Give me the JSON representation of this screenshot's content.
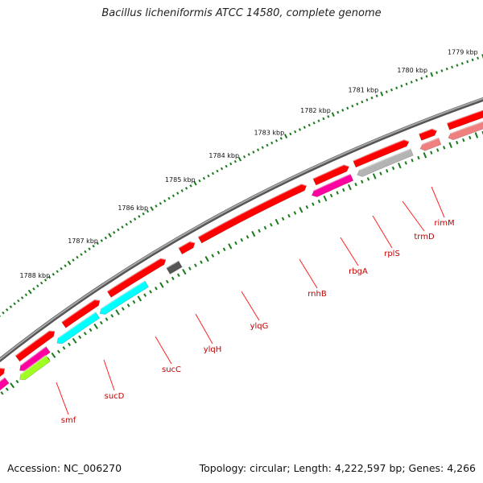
{
  "title": "Bacillus licheniformis ATCC 14580, complete genome",
  "footer": {
    "accession": "Accession: NC_006270",
    "summary": "Topology: circular; Length: 4,222,597 bp; Genes: 4,266"
  },
  "colors": {
    "forward_gene": "#ff0000",
    "reverse_gene_light": "#f08080",
    "cyan_gene": "#00ffff",
    "magenta_gene": "#ff00a0",
    "lime_gene": "#a0ff20",
    "gray_gene": "#b4b4b4",
    "dark_gray_gene": "#555555",
    "backbone": "#777777",
    "ticks": "#1a7a1a",
    "label": "#c00000"
  },
  "kbp_ticks": [
    "1779 kbp",
    "1780 kbp",
    "1781 kbp",
    "1782 kbp",
    "1783 kbp",
    "1784 kbp",
    "1785 kbp",
    "1786 kbp",
    "1787 kbp",
    "1788 kbp"
  ],
  "gene_labels": [
    "rimM",
    "trmD",
    "rplS",
    "rbgA",
    "rnhB",
    "ylqG",
    "ylqH",
    "sucC",
    "sucD",
    "smf"
  ]
}
